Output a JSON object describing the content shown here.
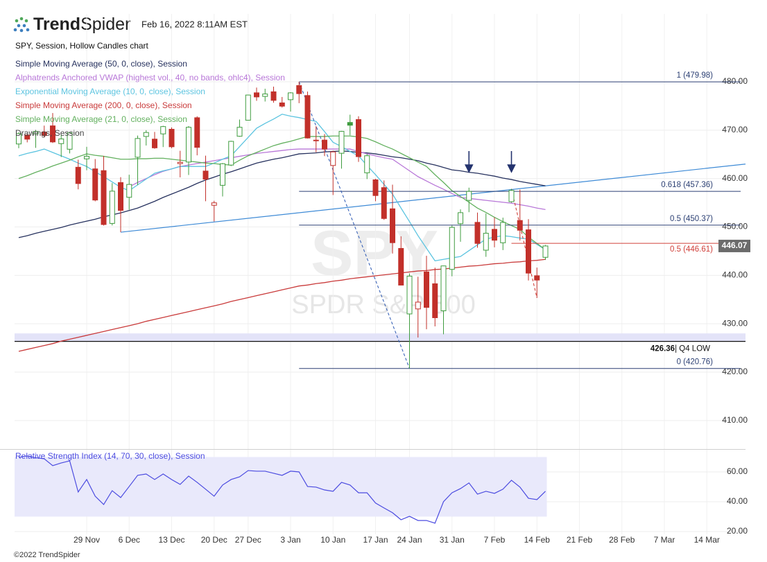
{
  "header": {
    "brand_bold": "Trend",
    "brand_light": "Spider",
    "timestamp": "Feb 16, 2022 8:11AM EST"
  },
  "footer": "©2022 TrendSpider",
  "chart_data": [
    {
      "type": "candlestick",
      "title": "SPY, Session, Hollow Candles chart",
      "watermark": [
        "SPY",
        "SPDR S&P 500"
      ],
      "drawings_label": "Drawings, Session",
      "categories": [
        null,
        null,
        null,
        null,
        null,
        null,
        null,
        null,
        "29 Nov",
        null,
        null,
        null,
        null,
        "6 Dec",
        null,
        null,
        null,
        null,
        "13 Dec",
        null,
        null,
        null,
        null,
        "20 Dec",
        null,
        null,
        null,
        "27 Dec",
        null,
        null,
        null,
        null,
        "3 Jan",
        null,
        null,
        null,
        null,
        "10 Jan",
        null,
        null,
        null,
        null,
        "17 Jan",
        null,
        null,
        null,
        "24 Jan",
        null,
        null,
        null,
        null,
        "31 Jan",
        null,
        null,
        null,
        null,
        "7 Feb",
        null,
        null,
        null,
        null,
        "14 Feb",
        null,
        null,
        null,
        null,
        "21 Feb",
        null,
        null,
        null,
        null,
        "28 Feb",
        null,
        null,
        null,
        null,
        "7 Mar",
        null,
        null,
        null,
        null,
        "14 Mar",
        null,
        null,
        null,
        null
      ],
      "open": [
        467.15,
        469,
        469.24,
        469.61,
        470.89,
        467.22,
        466.06,
        462.34,
        464.07,
        462,
        461.64,
        450.73,
        459.17,
        456.13,
        464.41,
        468.7,
        468.15,
        469.23,
        470.19,
        463.09,
        463.42,
        472.57,
        461.55,
        454.48,
        458.61,
        462.79,
        468.75,
        472.06,
        477.72,
        476.98,
        477.93,
        475.64,
        476.3,
        479.22,
        477.16,
        467.89,
        467.95,
        462.7,
        465.23,
        471.59,
        472.19,
        461.19,
        459.74,
        458.13,
        453.75,
        445.56,
        432.03,
        433.06,
        440.72,
        438.26,
        432.68,
        441.24,
        450.68,
        455.5,
        450.95,
        445.2,
        449.51,
        446.73,
        455.22,
        451.34,
        449.41,
        439.92,
        443.73,
        null,
        null,
        null,
        null,
        null,
        null,
        null,
        null,
        null,
        null,
        null,
        null,
        null,
        null,
        null,
        null,
        null,
        null,
        null,
        null,
        null,
        null,
        null
      ],
      "high": [
        469.57,
        469.19,
        470.01,
        470.94,
        473.54,
        469.1,
        469.57,
        463.9,
        466.56,
        464.03,
        464.67,
        459.07,
        460.3,
        460.79,
        468.88,
        470,
        469.63,
        470.9,
        470.56,
        465.74,
        470.86,
        472.87,
        464.74,
        455.4,
        463.21,
        467.81,
        472.19,
        477.31,
        478.81,
        478.56,
        479,
        476.86,
        477.85,
        479.98,
        477.98,
        470.82,
        469.2,
        465.74,
        469.85,
        473.2,
        472.88,
        465.09,
        459.96,
        459.61,
        458.74,
        448.06,
        440.38,
        439.72,
        444.04,
        441.59,
        442,
        450.28,
        453.63,
        458.12,
        452.97,
        452.78,
        451.99,
        451.92,
        457.88,
        457.71,
        451.61,
        441.6,
        446.28,
        null,
        null,
        null,
        null,
        null,
        null,
        null,
        null,
        null,
        null,
        null,
        null,
        null,
        null,
        null,
        null,
        null,
        null,
        null,
        null,
        null,
        null,
        null
      ],
      "low": [
        466.27,
        467.48,
        466.34,
        468.5,
        467.35,
        464.45,
        465.19,
        457.77,
        461.73,
        455.3,
        450.29,
        450.31,
        448.92,
        453.56,
        458.65,
        466.83,
        466.14,
        466.51,
        466.27,
        460.25,
        460.74,
        464.8,
        455.31,
        451.14,
        456.31,
        462.58,
        468.64,
        472.01,
        476.06,
        475.92,
        475.67,
        474.67,
        473.85,
        475.58,
        468.28,
        465.43,
        464.65,
        456.6,
        462.05,
        468.94,
        463.44,
        459.9,
        455.31,
        451.46,
        444.5,
        437.95,
        420.76,
        427.15,
        428.86,
        429.45,
        427.82,
        439.81,
        446.94,
        453.05,
        445.71,
        443.83,
        445.79,
        445.22,
        455.01,
        447.2,
        438.94,
        435.34,
        443.18,
        null,
        null,
        null,
        null,
        null,
        null,
        null,
        null,
        null,
        null,
        null,
        null,
        null,
        null,
        null,
        null,
        null,
        null,
        null,
        null,
        null,
        null,
        null
      ],
      "close": [
        469.28,
        468.14,
        469.73,
        468.89,
        467.57,
        468.19,
        469.44,
        458.97,
        464.6,
        455.56,
        450.5,
        457.4,
        453.42,
        458.79,
        468.28,
        469.52,
        466.35,
        470.74,
        466.57,
        463.36,
        470.6,
        466.45,
        459.87,
        454.98,
        463.06,
        467.69,
        470.6,
        477.26,
        476.87,
        477.48,
        476.16,
        474.96,
        477.71,
        477.55,
        468.38,
        467.94,
        466.09,
        465.51,
        469.75,
        471.02,
        464.53,
        464.72,
        456.49,
        451.75,
        446.75,
        437.98,
        439.84,
        434.47,
        433.38,
        431.24,
        441.95,
        449.91,
        452.95,
        457.35,
        446.6,
        448.7,
        447.26,
        450.94,
        457.54,
        449.32,
        440.46,
        439.02,
        446.07,
        null,
        null,
        null,
        null,
        null,
        null,
        null,
        null,
        null,
        null,
        null,
        null,
        null,
        null,
        null,
        null,
        null,
        null,
        null,
        null,
        null,
        null,
        null
      ],
      "up_color": "#3f9c3f",
      "down_color": "#c2302a",
      "overlays": [
        {
          "name": "Simple Moving Average (50, 0, close), Session",
          "color": "#26315e",
          "values": [
            447.8,
            448.2,
            448.7,
            449.1,
            449.5,
            449.9,
            450.4,
            450.8,
            451.2,
            451.6,
            452.1,
            452.5,
            452.9,
            453.4,
            453.9,
            454.6,
            455.3,
            456.1,
            456.8,
            457.5,
            458.2,
            459.0,
            459.7,
            460.3,
            460.9,
            461.4,
            462.0,
            462.6,
            463.2,
            463.6,
            464.0,
            464.3,
            464.7,
            465.1,
            465.2,
            465.3,
            465.5,
            465.6,
            465.7,
            465.6,
            465.4,
            465.3,
            465.1,
            464.8,
            464.5,
            464.3,
            464.0,
            463.7,
            463.2,
            462.8,
            462.3,
            461.8,
            461.6,
            461.3,
            461.1,
            460.8,
            460.5,
            460.1,
            459.8,
            459.4,
            459.1,
            458.8,
            458.5,
            null,
            null,
            null,
            null,
            null,
            null,
            null,
            null,
            null,
            null,
            null,
            null,
            null,
            null,
            null,
            null,
            null,
            null,
            null,
            null,
            null,
            null,
            null
          ]
        },
        {
          "name": "Alphatrends Anchored VWAP (highest vol., 40, no bands, ohlc4), Session",
          "color": "#b877d8",
          "values": [
            null,
            null,
            null,
            null,
            null,
            null,
            null,
            null,
            null,
            null,
            null,
            null,
            null,
            458.3,
            459.2,
            460.0,
            460.8,
            461.5,
            462.0,
            462.5,
            462.8,
            463.1,
            463.4,
            463.7,
            464.0,
            464.3,
            464.6,
            464.9,
            465.2,
            465.4,
            465.6,
            465.8,
            466.0,
            466.1,
            466.1,
            466.1,
            466.1,
            466.1,
            466.1,
            466.1,
            465.6,
            465.1,
            464.7,
            464.3,
            464.0,
            462.8,
            461.6,
            460.4,
            459.5,
            458.6,
            457.8,
            456.9,
            456.1,
            455.9,
            455.7,
            455.5,
            455.3,
            455.1,
            454.9,
            454.6,
            454.3,
            453.9,
            453.6,
            null,
            null,
            null,
            null,
            null,
            null,
            null,
            null,
            null,
            null,
            null,
            null,
            null,
            null,
            null,
            null,
            null,
            null,
            null,
            null,
            null,
            null,
            null
          ]
        },
        {
          "name": "Exponential Moving Average (10, 0, close), Session",
          "color": "#5cc4e0",
          "values": [
            464.7,
            465.2,
            465.6,
            466.1,
            465.4,
            464.7,
            464.0,
            463.2,
            462.5,
            461.4,
            460.4,
            459.3,
            458.2,
            457.5,
            458.7,
            459.9,
            461.1,
            461.6,
            462.0,
            462.5,
            462.5,
            462.5,
            462.5,
            463.2,
            464.0,
            464.7,
            466.6,
            468.5,
            470.4,
            471.4,
            472.3,
            473.3,
            472.9,
            472.6,
            472.2,
            471.8,
            469.7,
            467.5,
            466.6,
            465.6,
            464.7,
            462.7,
            460.8,
            458.8,
            456.8,
            453.9,
            451.1,
            448.2,
            445.6,
            443.0,
            443.3,
            443.6,
            443.9,
            445.1,
            446.3,
            447.5,
            447.9,
            448.2,
            448.0,
            447.7,
            447.5,
            446.4,
            445.3,
            null,
            null,
            null,
            null,
            null,
            null,
            null,
            null,
            null,
            null,
            null,
            null,
            null,
            null,
            null,
            null,
            null,
            null,
            null,
            null,
            null,
            null,
            null
          ]
        },
        {
          "name": "Simple Moving Average (200, 0, close), Session",
          "color": "#c93a3a",
          "values": [
            424.3,
            424.7,
            425.1,
            425.5,
            425.9,
            426.4,
            426.8,
            427.2,
            427.6,
            428.0,
            428.4,
            428.8,
            429.2,
            429.6,
            430.0,
            430.5,
            430.9,
            431.3,
            431.7,
            432.1,
            432.5,
            432.9,
            433.3,
            433.7,
            434.1,
            434.6,
            435.0,
            435.4,
            435.8,
            436.2,
            436.6,
            437.0,
            437.4,
            437.8,
            438.0,
            438.3,
            438.5,
            438.8,
            439.0,
            439.3,
            439.5,
            439.7,
            439.9,
            440.1,
            440.3,
            440.5,
            440.7,
            440.9,
            441.0,
            441.2,
            441.3,
            441.5,
            441.7,
            441.9,
            442.0,
            442.2,
            442.4,
            442.5,
            442.7,
            442.8,
            443.0,
            443.1,
            443.3,
            null,
            null,
            null,
            null,
            null,
            null,
            null,
            null,
            null,
            null,
            null,
            null,
            null,
            null,
            null,
            null,
            null,
            null,
            null,
            null,
            null,
            null,
            null
          ]
        },
        {
          "name": "Simple Moving Average (21, 0, close), Session",
          "color": "#62b05e",
          "values": [
            460.0,
            460.6,
            461.3,
            461.9,
            462.6,
            463.2,
            463.8,
            464.5,
            465.1,
            464.8,
            464.6,
            464.3,
            464.0,
            464.0,
            464.1,
            464.1,
            464.2,
            464.2,
            464.0,
            463.8,
            463.6,
            463.4,
            463.2,
            463.1,
            462.9,
            462.8,
            463.8,
            464.7,
            465.4,
            466.1,
            466.8,
            467.3,
            467.7,
            468.2,
            468.7,
            468.7,
            468.7,
            468.8,
            468.8,
            468.8,
            468.6,
            468.3,
            467.6,
            466.8,
            466.1,
            465.2,
            464.3,
            463.4,
            462.5,
            460.8,
            459.2,
            457.5,
            456.3,
            455.1,
            453.9,
            453.0,
            452.0,
            451.1,
            450.3,
            449.5,
            447.9,
            446.6,
            445.3,
            null,
            null,
            null,
            null,
            null,
            null,
            null,
            null,
            null,
            null,
            null,
            null,
            null,
            null,
            null,
            null,
            null,
            null,
            null,
            null,
            null,
            null,
            null
          ]
        }
      ],
      "levels": [
        {
          "value": 479.98,
          "label": "1 (479.98)",
          "color": "#2b3f73"
        },
        {
          "value": 457.36,
          "label": "0.618 (457.36)",
          "color": "#2b3f73"
        },
        {
          "value": 450.37,
          "label": "0.5 (450.37)",
          "color": "#2b3f73"
        },
        {
          "value": 446.61,
          "label": "0.5 (446.61)",
          "color": "#d0403a"
        },
        {
          "value": 420.76,
          "label": "0 (420.76)",
          "color": "#2b3f73"
        }
      ],
      "q4_low": {
        "value": 426.36,
        "label": "| Q4 LOW"
      },
      "zone": [
        426.36,
        428.0
      ],
      "trendline": [
        448.92,
        463.0
      ],
      "ylim": [
        404,
        494
      ],
      "yticks": [
        {
          "value": 410,
          "label": "410.00"
        },
        {
          "value": 420,
          "label": "420.00"
        },
        {
          "value": 430,
          "label": "430.00"
        },
        {
          "value": 440,
          "label": "440.00"
        },
        {
          "value": 450,
          "label": "450.00"
        },
        {
          "value": 460,
          "label": "460.00"
        },
        {
          "value": 470,
          "label": "470.00"
        },
        {
          "value": 480,
          "label": "480.00"
        }
      ],
      "grid": true
    },
    {
      "type": "line",
      "name": "Relative Strength Index (14, 70, 30, close), Session",
      "color": "#4b4be0",
      "band": [
        30,
        70
      ],
      "values": [
        69.8,
        70.7,
        69.5,
        68.8,
        64.2,
        66.0,
        67.4,
        46.5,
        54.9,
        43.7,
        38.1,
        47.4,
        42.8,
        50.2,
        57.7,
        58.6,
        54.9,
        58.6,
        54.9,
        51.6,
        57.2,
        53.0,
        48.4,
        43.7,
        51.2,
        54.9,
        56.7,
        60.9,
        60.5,
        60.5,
        59.1,
        57.7,
        60.5,
        60.0,
        50.2,
        49.8,
        47.9,
        47.0,
        53.0,
        51.2,
        46.0,
        46.0,
        39.1,
        35.8,
        32.6,
        27.9,
        30.2,
        27.4,
        27.4,
        25.6,
        40.0,
        46.0,
        48.8,
        52.6,
        45.1,
        47.0,
        45.6,
        48.4,
        54.4,
        49.8,
        42.3,
        41.4,
        47.0,
        null,
        null,
        null,
        null,
        null,
        null,
        null,
        null,
        null,
        null,
        null,
        null,
        null,
        null,
        null,
        null,
        null,
        null,
        null,
        null,
        null,
        null,
        null
      ],
      "ylim": [
        18,
        75
      ],
      "yticks": [
        {
          "value": 20,
          "label": "20.00"
        },
        {
          "value": 40,
          "label": "40.00"
        },
        {
          "value": 60,
          "label": "60.00"
        }
      ],
      "grid": true
    }
  ]
}
